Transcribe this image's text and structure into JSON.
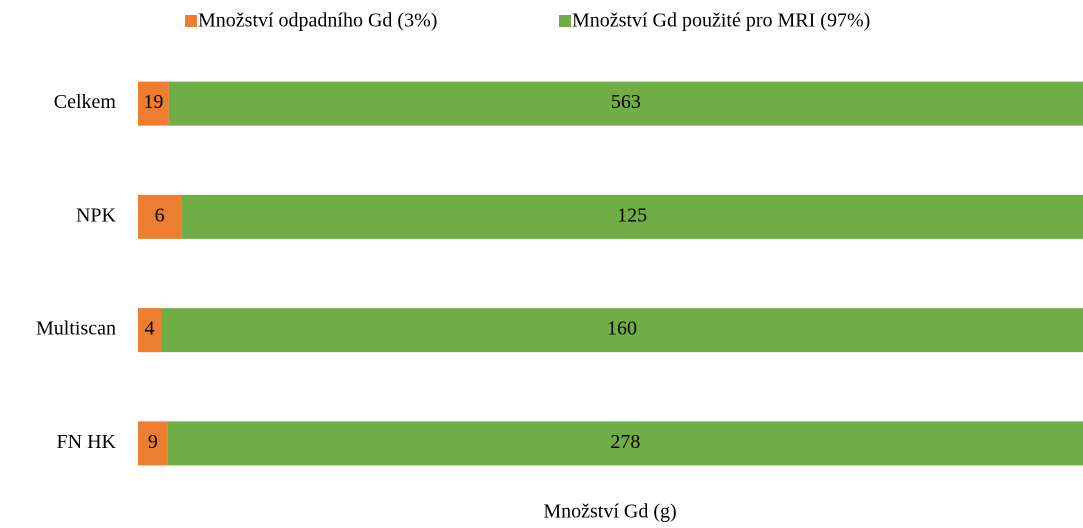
{
  "chart_data": {
    "type": "bar",
    "orientation": "horizontal",
    "stacking": "percent",
    "x_label": "Množství Gd (g)",
    "categories": [
      "Celkem",
      "NPK",
      "Multiscan",
      "FN HK"
    ],
    "series": [
      {
        "name": "Množství odpadního Gd (3%)",
        "color": "#ed7d31",
        "values": [
          19,
          6,
          4,
          9
        ]
      },
      {
        "name": "Množství Gd použité pro MRI (97%)",
        "color": "#70ad47",
        "values": [
          563,
          125,
          160,
          278
        ]
      }
    ],
    "legend": "top"
  }
}
